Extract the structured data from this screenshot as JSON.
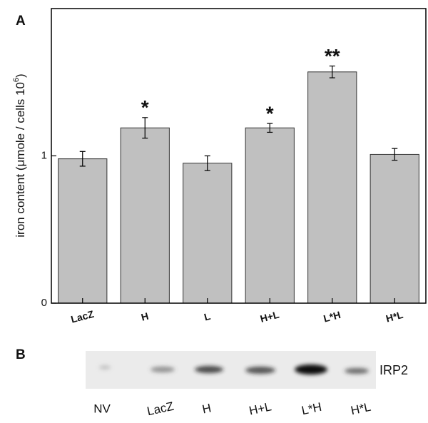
{
  "chart_data": {
    "type": "bar",
    "panel_label": "A",
    "ylabel": {
      "text": "iron content (μmole / cells 10",
      "superscript": "6",
      "close": ")"
    },
    "categories": [
      "LacZ",
      "H",
      "L",
      "H+L",
      "L*H",
      "H*L"
    ],
    "values": [
      0.98,
      1.19,
      0.95,
      1.19,
      1.57,
      1.01
    ],
    "errors": [
      0.05,
      0.07,
      0.05,
      0.03,
      0.04,
      0.04
    ],
    "significance": [
      null,
      "*",
      null,
      "*",
      "**",
      null
    ],
    "color": "#c0c0c0",
    "ylim": [
      0,
      2
    ],
    "yticks": [
      0,
      1
    ]
  },
  "blot": {
    "panel_label": "B",
    "protein": "IRP2",
    "lanes": [
      "NV",
      "LacZ",
      "H",
      "H+L",
      "L*H",
      "H*L"
    ]
  }
}
